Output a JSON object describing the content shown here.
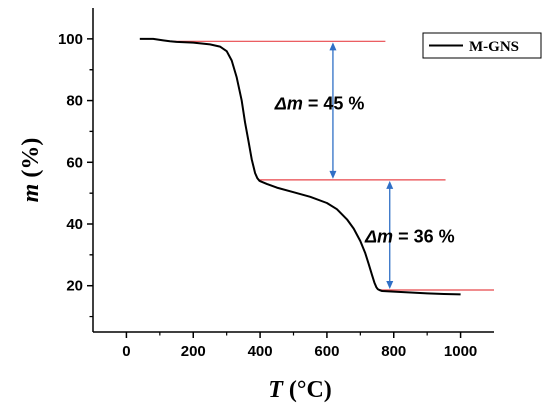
{
  "chart_data": {
    "type": "line",
    "xlabel": {
      "var": "T",
      "unit": " (°C)"
    },
    "ylabel": {
      "var": "m",
      "unit": " (%)"
    },
    "xlim": [
      -100,
      1100
    ],
    "ylim": [
      5,
      110
    ],
    "xticks": [
      0,
      200,
      400,
      600,
      800,
      1000
    ],
    "yticks": [
      20,
      40,
      60,
      80,
      100
    ],
    "series": [
      {
        "name": "M-GNS",
        "color": "#000000",
        "x": [
          40,
          80,
          110,
          130,
          150,
          200,
          250,
          280,
          300,
          315,
          330,
          345,
          355,
          365,
          375,
          385,
          392,
          398,
          402,
          420,
          450,
          500,
          550,
          600,
          630,
          660,
          680,
          700,
          715,
          725,
          735,
          742,
          748,
          752,
          757,
          765,
          800,
          850,
          900,
          950,
          1000
        ],
        "y": [
          100,
          100,
          99.5,
          99.2,
          99,
          98.8,
          98.2,
          97.5,
          96,
          93,
          87.5,
          80,
          73,
          67,
          61,
          56.5,
          54.8,
          54,
          53.8,
          53,
          51.8,
          50.3,
          48.8,
          46.8,
          44.8,
          41.5,
          38.5,
          34.5,
          30.5,
          27,
          23.5,
          21,
          19.5,
          18.9,
          18.6,
          18.3,
          18.1,
          17.8,
          17.5,
          17.3,
          17.2
        ]
      }
    ],
    "reference_lines": [
      {
        "y": 99.2,
        "x_from": 130,
        "x_to": 775,
        "color": "#e8474b"
      },
      {
        "y": 54.3,
        "x_from": 395,
        "x_to": 955,
        "color": "#e8474b"
      },
      {
        "y": 18.6,
        "x_from": 755,
        "x_to": 1100,
        "color": "#e8474b"
      }
    ],
    "annotations": [
      {
        "kind": "arrow",
        "x": 618,
        "y1": 99.2,
        "y2": 54.3,
        "color": "#2f6fc6",
        "symbol": "Δm",
        "text": " = 45 %",
        "label_x": 578,
        "label_y": 79
      },
      {
        "kind": "arrow",
        "x": 788,
        "y1": 54.3,
        "y2": 18.6,
        "color": "#2f6fc6",
        "symbol": "Δm",
        "text": " = 36 %",
        "label_x": 848,
        "label_y": 36
      }
    ],
    "legend": "top-right",
    "grid": false
  }
}
